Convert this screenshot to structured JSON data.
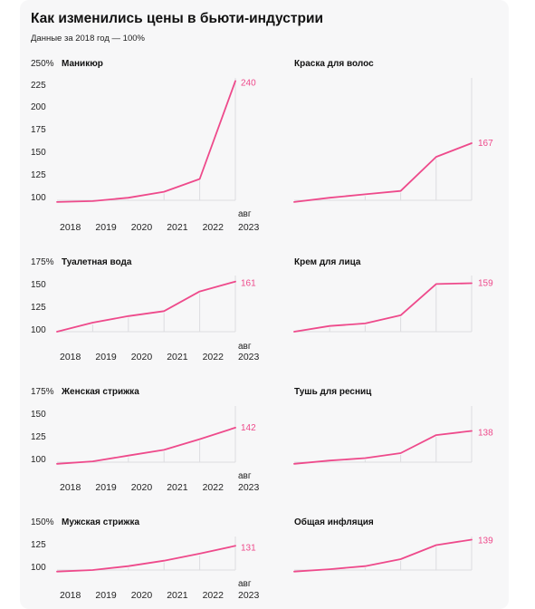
{
  "page": {
    "title": "Как изменились цены в бьюти-индустрии",
    "subtitle": "Данные за 2018 год — 100%"
  },
  "colors": {
    "line": "#ee4a8b",
    "value_label": "#ee4a8b",
    "grid": "#dcdce0",
    "text": "#111111",
    "axis_text": "#222222",
    "background": "#f7f7f8"
  },
  "chart_data": [
    {
      "type": "line",
      "title": "Маникюр",
      "categories": [
        "2018",
        "2019",
        "2020",
        "2021",
        "2022",
        "авг 2023"
      ],
      "values": [
        98,
        99,
        103,
        110,
        125,
        240
      ],
      "end_label": "240",
      "y_ticks": [
        "250%",
        "225",
        "200",
        "175",
        "150",
        "125",
        "100"
      ],
      "ylim": [
        100,
        250
      ],
      "show_y_ticks": true,
      "show_x_ticks": true
    },
    {
      "type": "line",
      "title": "Краска для волос",
      "categories": [
        "2018",
        "2019",
        "2020",
        "2021",
        "2022",
        "авг 2023"
      ],
      "values": [
        98,
        103,
        107,
        111,
        151,
        167
      ],
      "end_label": "167",
      "ylim": [
        100,
        250
      ],
      "show_y_ticks": false,
      "show_x_ticks": false
    },
    {
      "type": "line",
      "title": "Туалетная вода",
      "categories": [
        "2018",
        "2019",
        "2020",
        "2021",
        "2022",
        "авг 2023"
      ],
      "values": [
        100,
        111,
        119,
        125,
        149,
        161
      ],
      "end_label": "161",
      "y_ticks": [
        "175%",
        "150",
        "125",
        "100"
      ],
      "ylim": [
        100,
        175
      ],
      "show_y_ticks": true,
      "show_x_ticks": true
    },
    {
      "type": "line",
      "title": "Крем для лица",
      "categories": [
        "2018",
        "2019",
        "2020",
        "2021",
        "2022",
        "авг 2023"
      ],
      "values": [
        100,
        107,
        110,
        120,
        158,
        159
      ],
      "end_label": "159",
      "ylim": [
        100,
        175
      ],
      "show_y_ticks": false,
      "show_x_ticks": false
    },
    {
      "type": "line",
      "title": "Женская стрижка",
      "categories": [
        "2018",
        "2019",
        "2020",
        "2021",
        "2022",
        "авг 2023"
      ],
      "values": [
        98,
        101,
        108,
        115,
        128,
        142
      ],
      "end_label": "142",
      "y_ticks": [
        "175%",
        "150",
        "125",
        "100"
      ],
      "ylim": [
        100,
        175
      ],
      "show_y_ticks": true,
      "show_x_ticks": true
    },
    {
      "type": "line",
      "title": "Тушь для ресниц",
      "categories": [
        "2018",
        "2019",
        "2020",
        "2021",
        "2022",
        "авг 2023"
      ],
      "values": [
        98,
        102,
        105,
        111,
        133,
        138
      ],
      "end_label": "138",
      "ylim": [
        100,
        175
      ],
      "show_y_ticks": false,
      "show_x_ticks": false
    },
    {
      "type": "line",
      "title": "Мужская стрижка",
      "categories": [
        "2018",
        "2019",
        "2020",
        "2021",
        "2022",
        "авг 2023"
      ],
      "values": [
        98,
        100,
        105,
        112,
        121,
        131
      ],
      "end_label": "131",
      "y_ticks": [
        "150%",
        "125",
        "100"
      ],
      "ylim": [
        100,
        150
      ],
      "show_y_ticks": true,
      "show_x_ticks": true
    },
    {
      "type": "line",
      "title": "Общая инфляция",
      "categories": [
        "2018",
        "2019",
        "2020",
        "2021",
        "2022",
        "авг 2023"
      ],
      "values": [
        98,
        101,
        105,
        114,
        132,
        139
      ],
      "end_label": "139",
      "ylim": [
        100,
        150
      ],
      "show_y_ticks": false,
      "show_x_ticks": false
    }
  ]
}
